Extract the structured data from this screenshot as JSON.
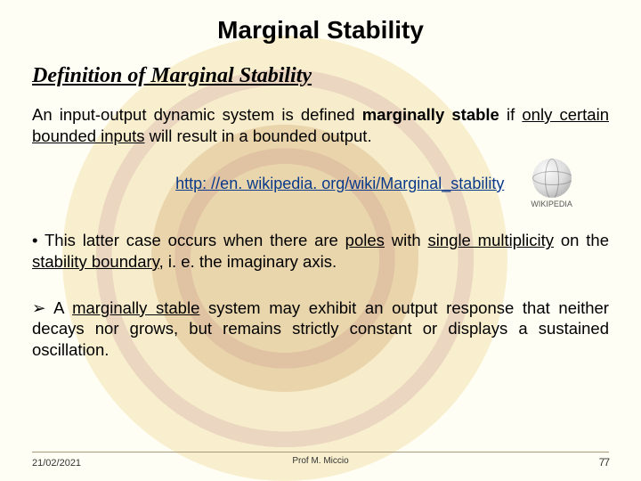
{
  "title": "Marginal Stability",
  "subtitle": "Definition of Marginal Stability",
  "definition": {
    "pre": "An input-output dynamic system is defined ",
    "term": "marginally stable",
    "mid": " if ",
    "cond": "only certain bounded inputs",
    "post": " will result in a bounded output."
  },
  "link": "http: //en. wikipedia. org/wiki/Marginal_stability",
  "wiki_label": "WIKIPEDIA",
  "bullet1": {
    "prefix": "• This latter case occurs when there are ",
    "poles": "poles",
    "mid1": " with ",
    "single_mult": "single multiplicity",
    "mid2": " on the ",
    "boundary": "stability boundary",
    "post": ", i. e. the imaginary axis."
  },
  "bullet2": {
    "prefix": "➢ A ",
    "term": "marginally stable",
    "post": " system may exhibit an output response that neither decays nor grows, but remains strictly constant or displays a sustained oscillation."
  },
  "footer": {
    "date": "21/02/2021",
    "author": "Prof M. Miccio",
    "page": "77"
  },
  "colors": {
    "link": "#0a3a8a",
    "seal": "#e8c968"
  }
}
